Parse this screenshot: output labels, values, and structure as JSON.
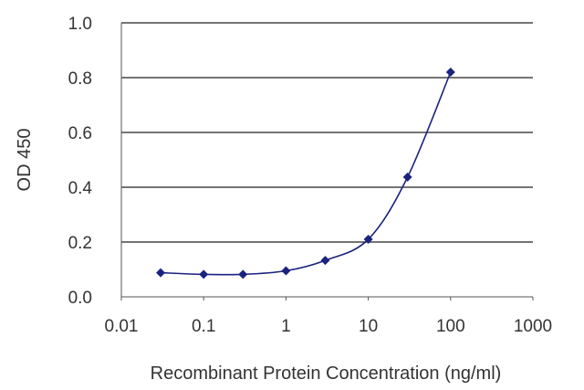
{
  "chart_data": {
    "type": "line",
    "title": "",
    "xlabel": "Recombinant Protein Concentration (ng/ml)",
    "ylabel": "OD 450",
    "x_scale": "log",
    "xlim": [
      0.01,
      1000
    ],
    "ylim": [
      0.0,
      1.0
    ],
    "x_tick_labels": [
      "0.01",
      "0.1",
      "1",
      "10",
      "100",
      "1000"
    ],
    "x_tick_values": [
      0.01,
      0.1,
      1,
      10,
      100,
      1000
    ],
    "y_tick_labels": [
      "0.0",
      "0.2",
      "0.4",
      "0.6",
      "0.8",
      "1.0"
    ],
    "y_tick_values": [
      0.0,
      0.2,
      0.4,
      0.6,
      0.8,
      1.0
    ],
    "grid": "horizontal",
    "legend": "none",
    "series": [
      {
        "color": "#1a237e",
        "marker": "diamond",
        "x": [
          0.03,
          0.1,
          0.3,
          1,
          3,
          10,
          30,
          100
        ],
        "y": [
          0.088,
          0.082,
          0.082,
          0.095,
          0.133,
          0.21,
          0.437,
          0.82
        ]
      }
    ]
  }
}
